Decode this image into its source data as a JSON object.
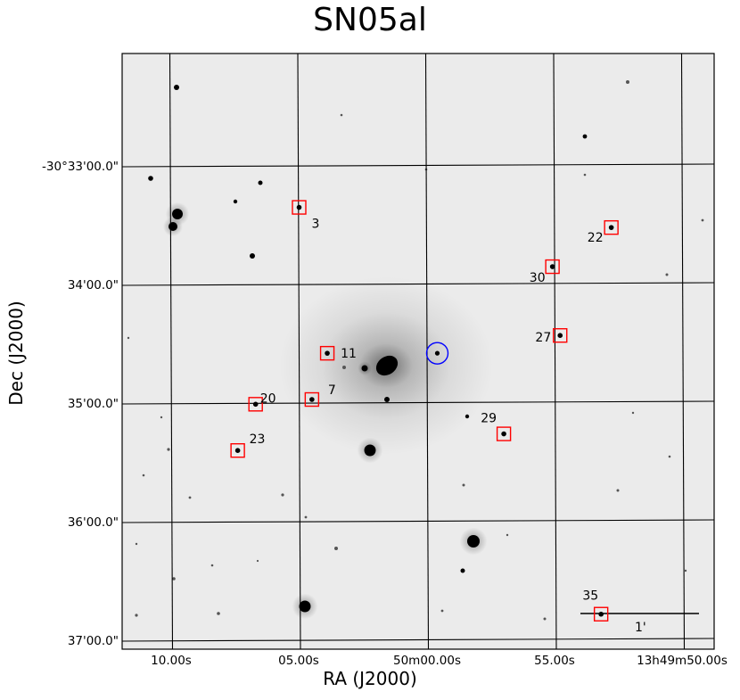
{
  "chart_data": {
    "type": "scatter",
    "title": "SN05al",
    "xlabel": "RA (J2000)",
    "ylabel": "Dec (J2000)",
    "grid": true,
    "x_ticks": [
      "10.00s",
      "05.00s",
      "50m00.00s",
      "55.00s",
      "13h49m50.00s"
    ],
    "y_ticks": [
      "-30°33'00.0\"",
      "34'00.0\"",
      "35'00.0\"",
      "36'00.0\"",
      "37'00.0\""
    ],
    "scale_bar_label": "1'",
    "comparison_stars": [
      {
        "label": "3",
        "x": 5.0,
        "y": 0.35
      },
      {
        "label": "22",
        "x": 52.8,
        "y": 0.52
      },
      {
        "label": "30",
        "x": 55.1,
        "y": 0.85
      },
      {
        "label": "27",
        "x": 54.8,
        "y": 1.43
      },
      {
        "label": "11",
        "x": 3.9,
        "y": 1.58
      },
      {
        "label": "7",
        "x": 4.5,
        "y": 1.97
      },
      {
        "label": "20",
        "x": 6.7,
        "y": 2.01
      },
      {
        "label": "29",
        "x": 57.0,
        "y": 2.26
      },
      {
        "label": "23",
        "x": 7.4,
        "y": 2.4
      },
      {
        "label": "35",
        "x": 53.2,
        "y": 3.78
      }
    ],
    "supernova": {
      "x": 59.6,
      "y": 1.58
    }
  }
}
